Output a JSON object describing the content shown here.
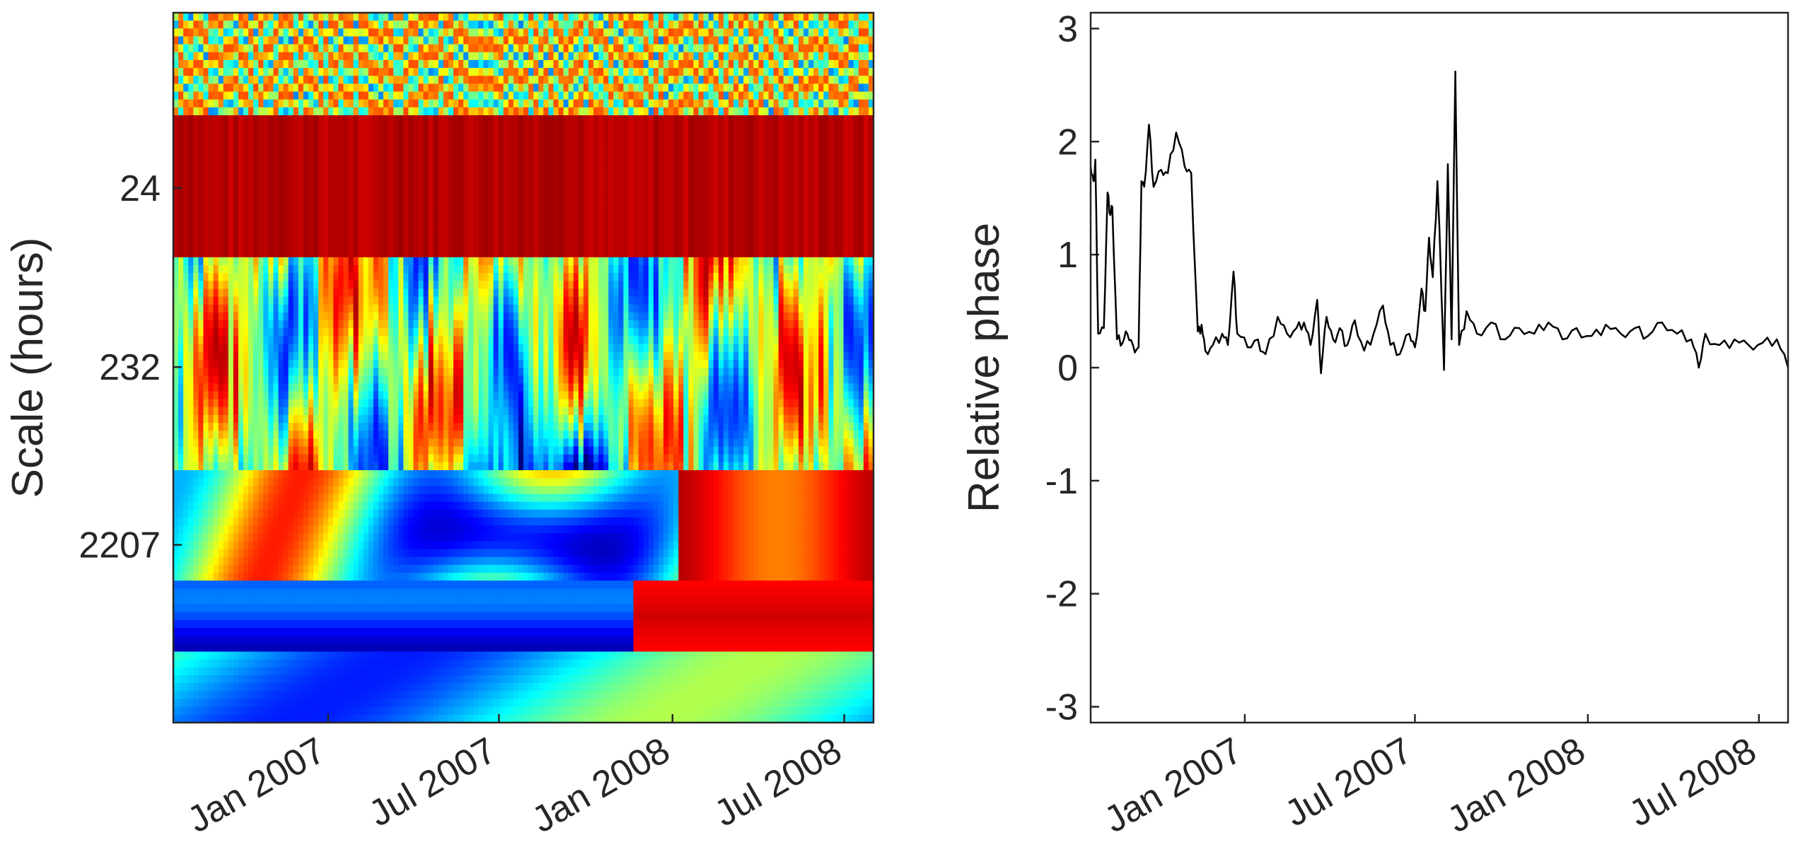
{
  "chart_data": [
    {
      "type": "heatmap",
      "title": "",
      "xlabel": "",
      "ylabel": "Scale (hours)",
      "y_scale": "log",
      "ytick_labels": [
        "24",
        "232",
        "2207"
      ],
      "ytick_values": [
        24,
        232,
        2207
      ],
      "ylim": [
        2.6,
        21000
      ],
      "xtick_labels": [
        "Jan 2007",
        "Jul 2007",
        "Jan 2008",
        "Jul 2008"
      ],
      "xtick_dates": [
        "2007-01-01",
        "2007-07-01",
        "2008-01-01",
        "2008-07-01"
      ],
      "xlim": [
        "2006-07-21",
        "2008-08-01"
      ],
      "colormap": "jet",
      "regions": [
        {
          "date_range": [
            "2006-07-21",
            "2008-08-01"
          ],
          "scale_range": [
            2.6,
            9
          ],
          "level": "mixed high-frequency"
        },
        {
          "date_range": [
            "2006-07-21",
            "2008-08-01"
          ],
          "scale_range": [
            9,
            40
          ],
          "level": "high (red)"
        },
        {
          "date_range": [
            "2007-07-15",
            "2007-12-15"
          ],
          "scale_range": [
            300,
            1200
          ],
          "level": "low (dark blue)"
        },
        {
          "date_range": [
            "2006-07-21",
            "2007-12-01"
          ],
          "scale_range": [
            2000,
            21000
          ],
          "level": "low (blue)"
        },
        {
          "date_range": [
            "2008-01-01",
            "2008-08-01"
          ],
          "scale_range": [
            700,
            4000
          ],
          "level": "high (red)"
        }
      ]
    },
    {
      "type": "line",
      "title": "",
      "xlabel": "",
      "ylabel": "Relative phase",
      "ylim": [
        -3.14,
        3.14
      ],
      "ytick_labels": [
        "3",
        "2",
        "1",
        "0",
        "-1",
        "-2",
        "-3"
      ],
      "ytick_values": [
        3,
        2,
        1,
        0,
        -1,
        -2,
        -3
      ],
      "xtick_labels": [
        "Jan 2007",
        "Jul 2007",
        "Jan 2008",
        "Jul 2008"
      ],
      "xtick_dates": [
        "2007-01-01",
        "2007-07-01",
        "2008-01-01",
        "2008-07-01"
      ],
      "xlim": [
        "2006-07-21",
        "2008-08-01"
      ],
      "series": [
        {
          "name": "Relative phase",
          "color": "#000000",
          "points": [
            [
              "2006-07-21",
              1.78
            ],
            [
              "2006-07-24",
              1.65
            ],
            [
              "2006-07-26",
              1.84
            ],
            [
              "2006-07-29",
              0.3
            ],
            [
              "2006-08-04",
              0.35
            ],
            [
              "2006-08-08",
              1.55
            ],
            [
              "2006-08-11",
              1.35
            ],
            [
              "2006-08-13",
              1.42
            ],
            [
              "2006-08-18",
              0.25
            ],
            [
              "2006-08-24",
              0.22
            ],
            [
              "2006-08-29",
              0.3
            ],
            [
              "2006-09-04",
              0.2
            ],
            [
              "2006-09-10",
              0.18
            ],
            [
              "2006-09-13",
              1.65
            ],
            [
              "2006-09-16",
              1.6
            ],
            [
              "2006-09-21",
              2.15
            ],
            [
              "2006-09-26",
              1.6
            ],
            [
              "2006-10-04",
              1.75
            ],
            [
              "2006-10-11",
              1.72
            ],
            [
              "2006-10-20",
              2.08
            ],
            [
              "2006-10-29",
              1.78
            ],
            [
              "2006-11-05",
              1.72
            ],
            [
              "2006-11-12",
              0.32
            ],
            [
              "2006-11-16",
              0.38
            ],
            [
              "2006-11-20",
              0.15
            ],
            [
              "2006-11-28",
              0.2
            ],
            [
              "2006-12-08",
              0.3
            ],
            [
              "2006-12-14",
              0.2
            ],
            [
              "2006-12-20",
              0.85
            ],
            [
              "2006-12-24",
              0.3
            ],
            [
              "2007-01-04",
              0.18
            ],
            [
              "2007-01-15",
              0.25
            ],
            [
              "2007-01-23",
              0.12
            ],
            [
              "2007-02-05",
              0.45
            ],
            [
              "2007-02-15",
              0.3
            ],
            [
              "2007-02-25",
              0.35
            ],
            [
              "2007-03-05",
              0.4
            ],
            [
              "2007-03-12",
              0.2
            ],
            [
              "2007-03-19",
              0.6
            ],
            [
              "2007-03-23",
              -0.05
            ],
            [
              "2007-03-29",
              0.45
            ],
            [
              "2007-04-05",
              0.25
            ],
            [
              "2007-04-12",
              0.35
            ],
            [
              "2007-04-20",
              0.2
            ],
            [
              "2007-04-28",
              0.42
            ],
            [
              "2007-05-08",
              0.15
            ],
            [
              "2007-05-18",
              0.3
            ],
            [
              "2007-05-28",
              0.55
            ],
            [
              "2007-06-05",
              0.2
            ],
            [
              "2007-06-15",
              0.12
            ],
            [
              "2007-06-25",
              0.3
            ],
            [
              "2007-07-01",
              0.18
            ],
            [
              "2007-07-08",
              0.7
            ],
            [
              "2007-07-12",
              0.5
            ],
            [
              "2007-07-16",
              1.15
            ],
            [
              "2007-07-20",
              0.8
            ],
            [
              "2007-07-25",
              1.65
            ],
            [
              "2007-07-28",
              1.0
            ],
            [
              "2007-08-01",
              -0.02
            ],
            [
              "2007-08-05",
              1.8
            ],
            [
              "2007-08-09",
              0.25
            ],
            [
              "2007-08-13",
              2.62
            ],
            [
              "2007-08-17",
              0.2
            ],
            [
              "2007-08-25",
              0.5
            ],
            [
              "2007-09-05",
              0.3
            ],
            [
              "2007-09-20",
              0.4
            ],
            [
              "2007-10-05",
              0.25
            ],
            [
              "2007-10-20",
              0.35
            ],
            [
              "2007-11-05",
              0.3
            ],
            [
              "2007-11-20",
              0.4
            ],
            [
              "2007-12-05",
              0.25
            ],
            [
              "2007-12-20",
              0.35
            ],
            [
              "2008-01-05",
              0.28
            ],
            [
              "2008-01-20",
              0.38
            ],
            [
              "2008-02-05",
              0.3
            ],
            [
              "2008-02-20",
              0.35
            ],
            [
              "2008-03-05",
              0.28
            ],
            [
              "2008-03-20",
              0.4
            ],
            [
              "2008-04-05",
              0.3
            ],
            [
              "2008-04-20",
              0.25
            ],
            [
              "2008-04-28",
              0.0
            ],
            [
              "2008-05-05",
              0.3
            ],
            [
              "2008-05-20",
              0.2
            ],
            [
              "2008-06-05",
              0.25
            ],
            [
              "2008-06-20",
              0.2
            ],
            [
              "2008-07-05",
              0.22
            ],
            [
              "2008-07-20",
              0.25
            ],
            [
              "2008-08-01",
              0.0
            ]
          ]
        }
      ]
    }
  ]
}
